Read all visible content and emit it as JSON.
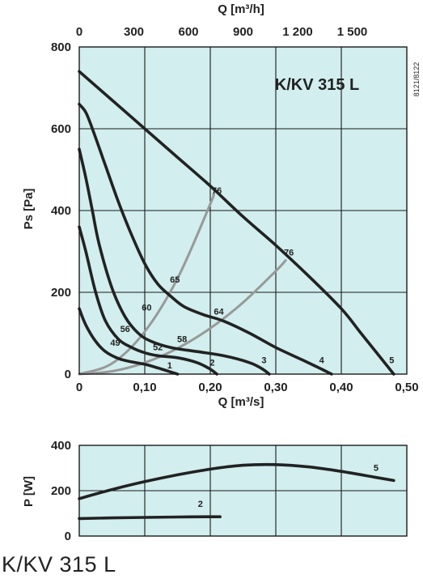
{
  "top_axis_label": "Q [m³/h]",
  "side_code": "8121/8122",
  "footer_title": "K/KV 315 L",
  "colors": {
    "panel_bg": "#d2eeee",
    "grid": "#1a1a1a",
    "curve": "#222222",
    "system_line": "#999999"
  },
  "chart_data": [
    {
      "type": "line",
      "title": "K/KV 315 L",
      "xlabel": "Q [m³/s]",
      "ylabel": "Ps [Pa]",
      "xlim": [
        0,
        0.5
      ],
      "ylim": [
        0,
        800
      ],
      "x_tick_labels": [
        "0",
        "0,10",
        "0,20",
        "0,30",
        "0,40",
        "0,50"
      ],
      "y_tick_labels": [
        "0",
        "200",
        "400",
        "600",
        "800"
      ],
      "top_axis": {
        "label": "Q [m³/h]",
        "ticks": [
          0,
          300,
          600,
          900,
          1200,
          1500
        ],
        "tick_labels": [
          "0",
          "300",
          "600",
          "900",
          "1 200",
          "1 500"
        ]
      },
      "grid": true,
      "series": [
        {
          "name": "1",
          "x": [
            0,
            0.01,
            0.025,
            0.04,
            0.06,
            0.08,
            0.1,
            0.12,
            0.14,
            0.15
          ],
          "y": [
            160,
            120,
            80,
            55,
            38,
            30,
            24,
            15,
            5,
            0
          ]
        },
        {
          "name": "2",
          "x": [
            0,
            0.01,
            0.025,
            0.04,
            0.06,
            0.08,
            0.1,
            0.12,
            0.15,
            0.18,
            0.2,
            0.21
          ],
          "y": [
            360,
            300,
            200,
            130,
            85,
            65,
            52,
            45,
            40,
            28,
            12,
            0
          ]
        },
        {
          "name": "3",
          "x": [
            0,
            0.01,
            0.02,
            0.03,
            0.05,
            0.07,
            0.09,
            0.11,
            0.14,
            0.18,
            0.22,
            0.26,
            0.28,
            0.29
          ],
          "y": [
            550,
            480,
            400,
            320,
            210,
            140,
            100,
            80,
            65,
            55,
            45,
            28,
            12,
            0
          ]
        },
        {
          "name": "4",
          "x": [
            0,
            0.01,
            0.02,
            0.04,
            0.06,
            0.08,
            0.1,
            0.12,
            0.14,
            0.16,
            0.19,
            0.22,
            0.26,
            0.3,
            0.34,
            0.37,
            0.385
          ],
          "y": [
            660,
            640,
            600,
            510,
            420,
            340,
            270,
            220,
            190,
            165,
            145,
            130,
            100,
            65,
            35,
            12,
            0
          ]
        },
        {
          "name": "5",
          "x": [
            0,
            0.05,
            0.1,
            0.15,
            0.2,
            0.25,
            0.3,
            0.35,
            0.4,
            0.43,
            0.46,
            0.48
          ],
          "y": [
            740,
            670,
            600,
            530,
            460,
            385,
            315,
            240,
            160,
            100,
            40,
            0
          ]
        }
      ],
      "system_curves": [
        {
          "x": [
            0,
            0.05,
            0.1,
            0.15,
            0.2,
            0.205
          ],
          "y": [
            0,
            26,
            104,
            234,
            416,
            440
          ]
        },
        {
          "x": [
            0,
            0.05,
            0.1,
            0.15,
            0.2,
            0.25,
            0.3,
            0.315
          ],
          "y": [
            0,
            7,
            28,
            63,
            112,
            175,
            252,
            278
          ]
        }
      ],
      "efficiency_labels": [
        {
          "text": "76",
          "x": 0.21,
          "y": 450
        },
        {
          "text": "65",
          "x": 0.146,
          "y": 232
        },
        {
          "text": "60",
          "x": 0.103,
          "y": 163
        },
        {
          "text": "56",
          "x": 0.07,
          "y": 111
        },
        {
          "text": "49",
          "x": 0.055,
          "y": 77
        },
        {
          "text": "64",
          "x": 0.213,
          "y": 153
        },
        {
          "text": "58",
          "x": 0.157,
          "y": 86
        },
        {
          "text": "52",
          "x": 0.12,
          "y": 66
        },
        {
          "text": "76",
          "x": 0.32,
          "y": 298
        }
      ],
      "curve_end_labels": [
        {
          "text": "1",
          "x": 0.138,
          "y": 22
        },
        {
          "text": "2",
          "x": 0.203,
          "y": 29
        },
        {
          "text": "3",
          "x": 0.282,
          "y": 35
        },
        {
          "text": "4",
          "x": 0.37,
          "y": 35
        },
        {
          "text": "5",
          "x": 0.477,
          "y": 35
        }
      ]
    },
    {
      "type": "line",
      "xlabel": "",
      "ylabel": "P [W]",
      "xlim": [
        0,
        0.5
      ],
      "ylim": [
        0,
        400
      ],
      "y_tick_labels": [
        "0",
        "200",
        "400"
      ],
      "grid": true,
      "series": [
        {
          "name": "2",
          "x": [
            0,
            0.05,
            0.1,
            0.15,
            0.2,
            0.215
          ],
          "y": [
            77,
            80,
            82,
            84,
            85,
            85
          ]
        },
        {
          "name": "5",
          "x": [
            0,
            0.05,
            0.1,
            0.15,
            0.2,
            0.25,
            0.3,
            0.35,
            0.4,
            0.45,
            0.48
          ],
          "y": [
            165,
            205,
            240,
            270,
            295,
            312,
            315,
            305,
            285,
            260,
            245
          ]
        }
      ],
      "curve_end_labels": [
        {
          "text": "2",
          "x": 0.185,
          "y": 142
        },
        {
          "text": "5",
          "x": 0.453,
          "y": 302
        }
      ]
    }
  ]
}
